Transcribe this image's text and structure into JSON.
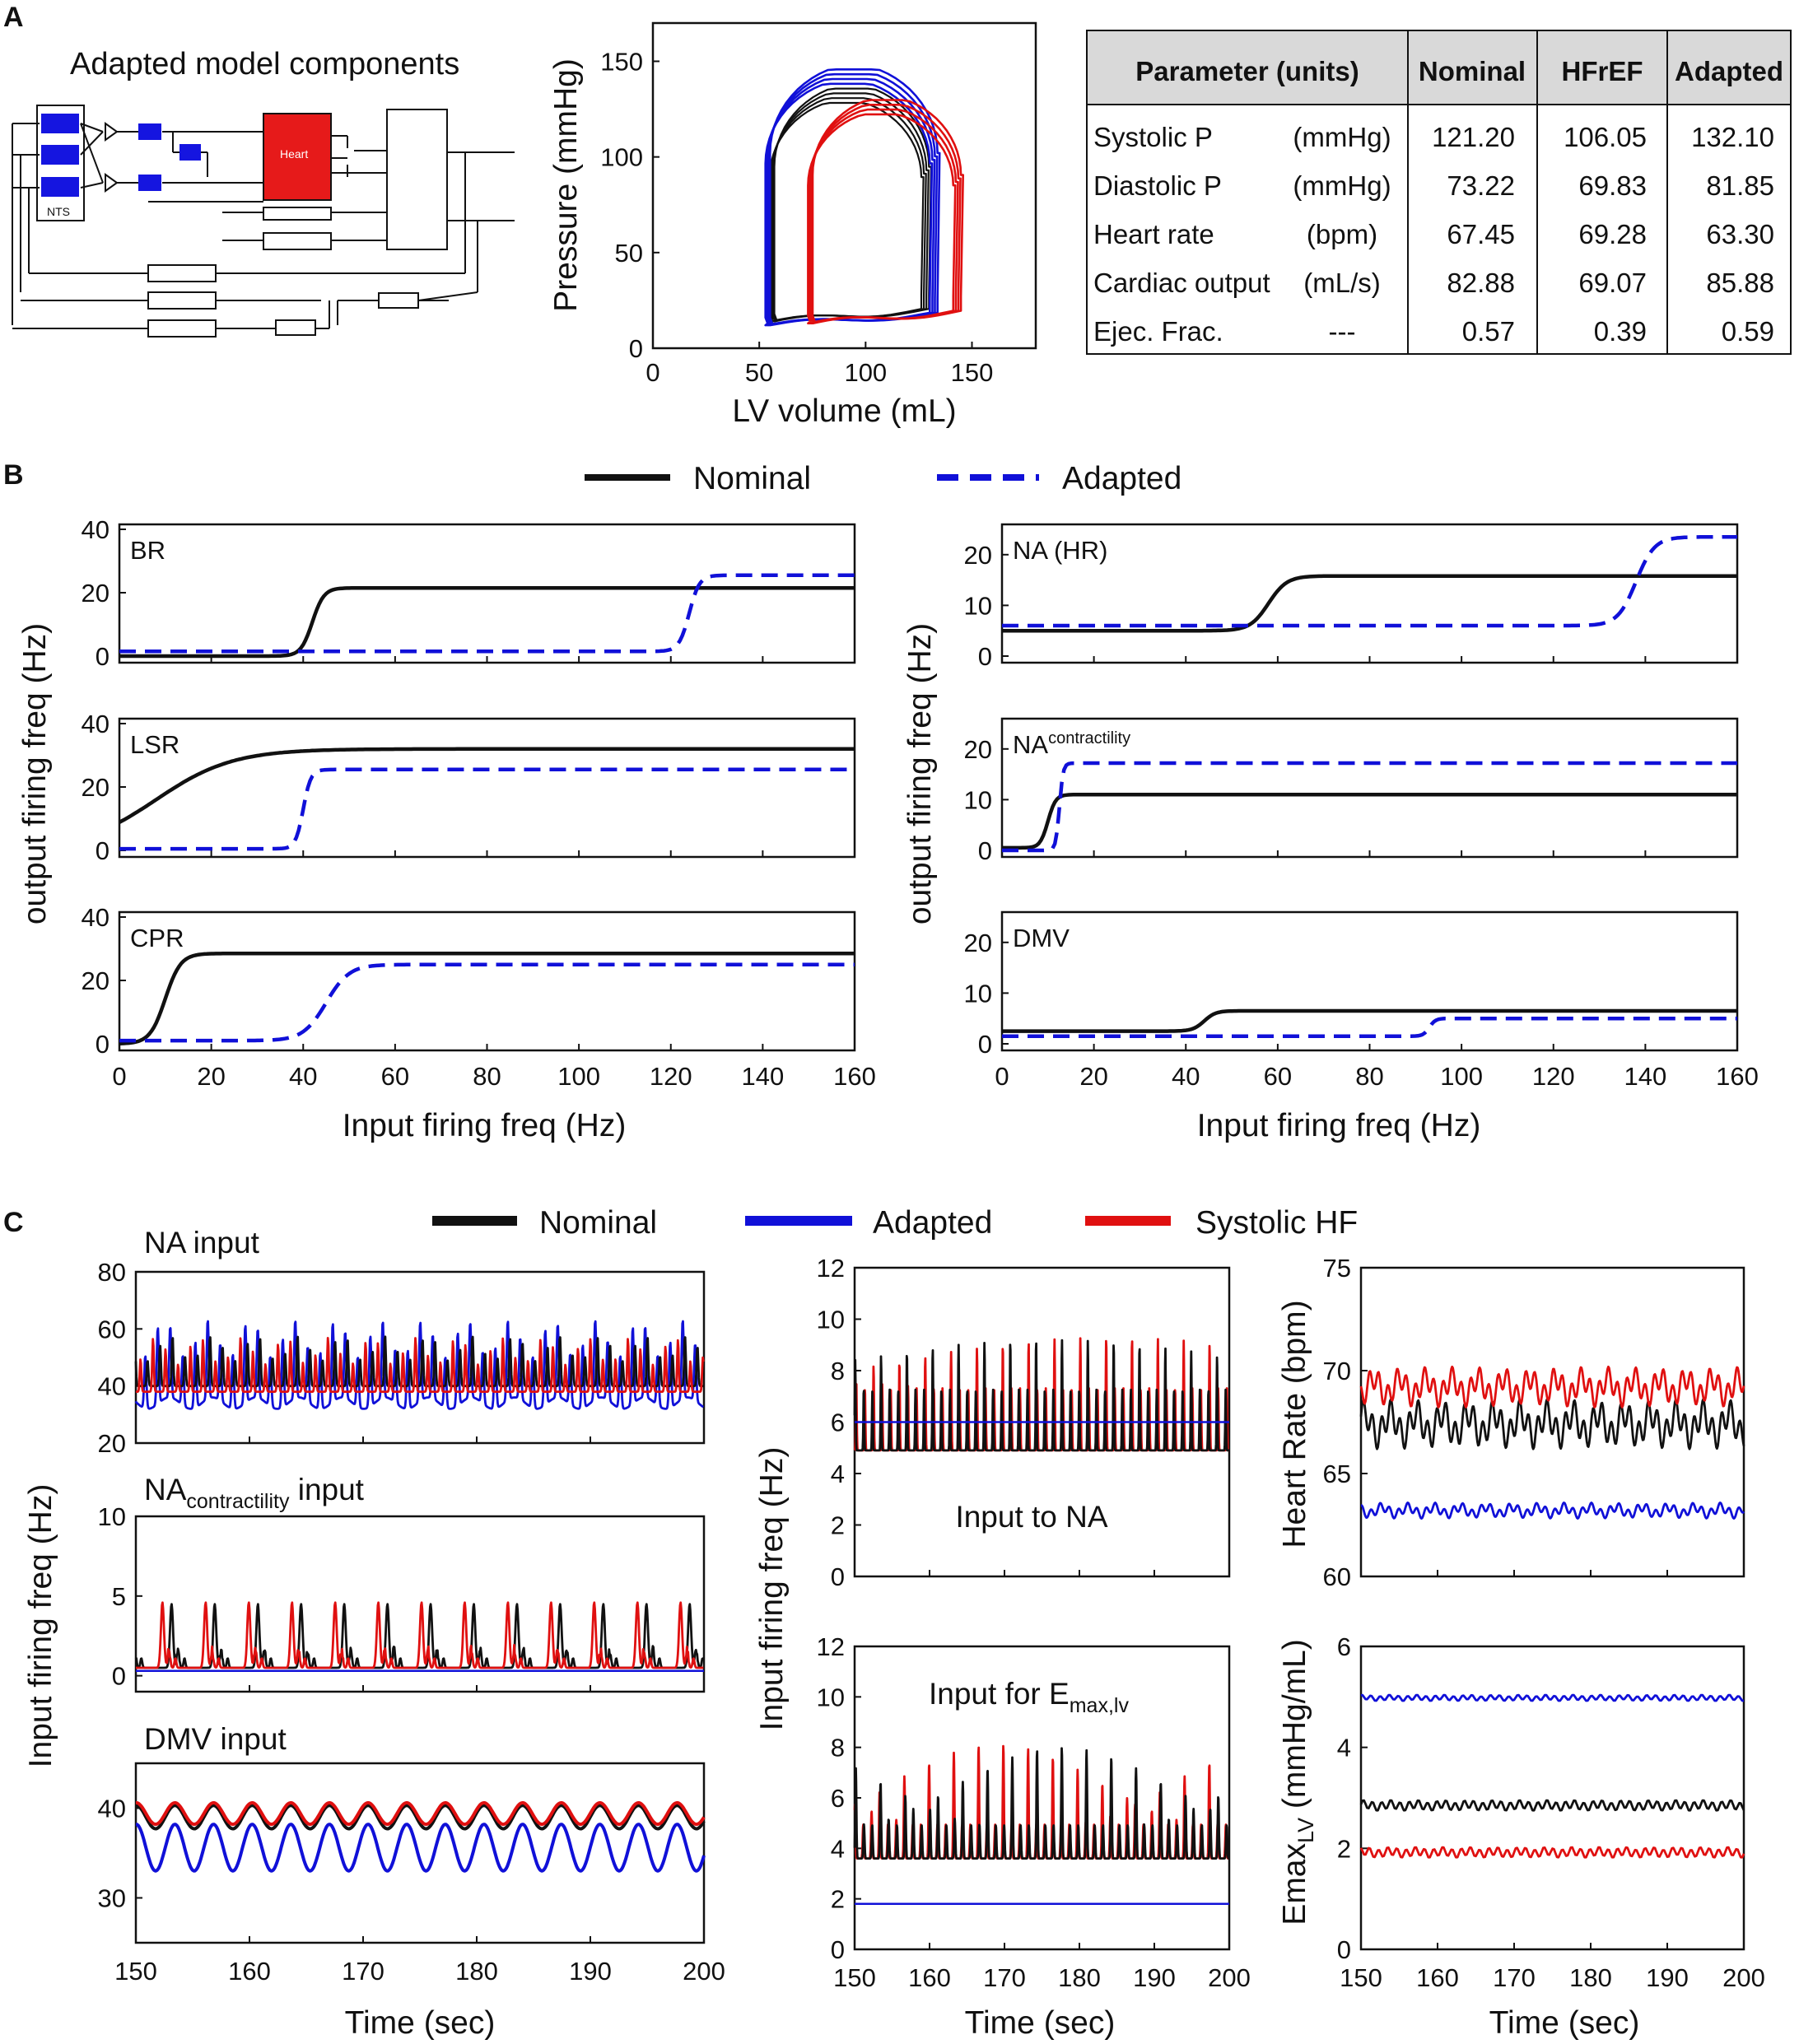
{
  "panels": {
    "a": "A",
    "b": "B",
    "c": "C"
  },
  "diagram": {
    "title": "Adapted model components",
    "heart_label": "Heart",
    "nts_label": "NTS",
    "colors": {
      "block": "#1515e0",
      "heart": "#e61a1a"
    }
  },
  "pv_loop": {
    "xlabel": "LV volume (mL)",
    "ylabel": "Pressure (mmHg)",
    "xticks": [
      "0",
      "50",
      "100",
      "150"
    ],
    "yticks": [
      "0",
      "50",
      "100",
      "150"
    ]
  },
  "table": {
    "headers": [
      "Parameter (units)",
      "Nominal",
      "HFrEF",
      "Adapted"
    ],
    "rows": [
      {
        "name": "Systolic P",
        "unit": "(mmHg)",
        "values": [
          "121.20",
          "106.05",
          "132.10"
        ]
      },
      {
        "name": "Diastolic P",
        "unit": "(mmHg)",
        "values": [
          "73.22",
          "69.83",
          "81.85"
        ]
      },
      {
        "name": "Heart rate",
        "unit": "(bpm)",
        "values": [
          "67.45",
          "69.28",
          "63.30"
        ]
      },
      {
        "name": "Cardiac output",
        "unit": "(mL/s)",
        "values": [
          "82.88",
          "69.07",
          "85.88"
        ]
      },
      {
        "name": "Ejec. Frac.",
        "unit": "---",
        "values": [
          "0.57",
          "0.39",
          "0.59"
        ]
      }
    ]
  },
  "legend_b": [
    "Nominal",
    "Adapted"
  ],
  "legend_c": [
    "Nominal",
    "Adapted",
    "Systolic HF"
  ],
  "colors": {
    "nominal": "#111111",
    "adapted": "#1010d8",
    "hf": "#e01010"
  },
  "b_axes": {
    "ylabel": "output firing freq (Hz)",
    "xlabel": "Input firing freq (Hz)",
    "xticks": [
      "0",
      "20",
      "40",
      "60",
      "80",
      "100",
      "120",
      "140",
      "160"
    ],
    "yticks_left": [
      "0",
      "20",
      "40"
    ],
    "yticks_right": [
      "0",
      "10",
      "20"
    ]
  },
  "b_titles": {
    "br": "BR",
    "lsr": "LSR",
    "cpr": "CPR",
    "nahr": "NA (HR)",
    "nac_main": "NA",
    "nac_sup": "contractility",
    "dmv": "DMV"
  },
  "c_axes": {
    "xticks": [
      "150",
      "160",
      "170",
      "180",
      "190",
      "200"
    ],
    "xlabel": "Time (sec)",
    "ylabel_left": "Input firing freq (Hz)",
    "ylabel_mid": "Input firing freq (Hz)",
    "na_yticks": [
      "20",
      "40",
      "60",
      "80"
    ],
    "nac_yticks": [
      "0",
      "5",
      "10"
    ],
    "dmv_yticks": [
      "30",
      "40"
    ],
    "mid_yticks": [
      "0",
      "2",
      "4",
      "6",
      "8",
      "10",
      "12"
    ],
    "hr_yticks": [
      "60",
      "65",
      "70",
      "75"
    ],
    "hr_ylabel": "Heart Rate (bpm)",
    "emax_yticks": [
      "0",
      "2",
      "4",
      "6"
    ],
    "emax_ylabel_main": "Emax",
    "emax_ylabel_sub": "LV",
    "emax_ylabel_unit": " (mmHg/mL)"
  },
  "c_titles": {
    "na": "NA input",
    "nac_main": "NA",
    "nac_sub": "contractility",
    "nac_tail": " input",
    "dmv": "DMV input",
    "input_na": "Input to NA",
    "input_emax_main": "Input for E",
    "input_emax_sub": "max,lv"
  },
  "chart_data": [
    {
      "type": "line",
      "name": "PV loops",
      "xlabel": "LV volume (mL)",
      "ylabel": "Pressure (mmHg)",
      "xlim": [
        0,
        180
      ],
      "ylim": [
        0,
        170
      ],
      "series": [
        {
          "name": "Nominal",
          "ved": 128,
          "ves": 56,
          "peak": 128,
          "dia": 16
        },
        {
          "name": "Adapted",
          "ved": 132,
          "ves": 54,
          "peak": 138,
          "dia": 14
        },
        {
          "name": "Systolic HF",
          "ved": 143,
          "ves": 74,
          "peak": 122,
          "dia": 15
        }
      ]
    },
    {
      "type": "line",
      "name": "BR",
      "xlim": [
        0,
        160
      ],
      "ylim": [
        0,
        40
      ],
      "series": [
        {
          "name": "Nominal",
          "min": 0,
          "max": 21.5,
          "mid": 42,
          "slope": 0.8
        },
        {
          "name": "Adapted",
          "min": 1.5,
          "max": 25.5,
          "mid": 124,
          "slope": 0.9
        }
      ]
    },
    {
      "type": "line",
      "name": "LSR",
      "xlim": [
        0,
        160
      ],
      "ylim": [
        0,
        40
      ],
      "series": [
        {
          "name": "Nominal",
          "min": 0,
          "max": 32,
          "mid": 8,
          "slope": 0.12
        },
        {
          "name": "Adapted",
          "min": 0.5,
          "max": 25.5,
          "mid": 40,
          "slope": 1.2
        }
      ]
    },
    {
      "type": "line",
      "name": "CPR",
      "xlim": [
        0,
        160
      ],
      "ylim": [
        0,
        40
      ],
      "series": [
        {
          "name": "Nominal",
          "min": 0,
          "max": 28.5,
          "mid": 10,
          "slope": 0.6
        },
        {
          "name": "Adapted",
          "min": 1,
          "max": 25,
          "mid": 45,
          "slope": 0.4
        }
      ]
    },
    {
      "type": "line",
      "name": "NA (HR)",
      "xlim": [
        0,
        160
      ],
      "ylim": [
        0,
        25
      ],
      "series": [
        {
          "name": "Nominal",
          "min": 5,
          "max": 15.8,
          "mid": 58,
          "slope": 0.5
        },
        {
          "name": "Adapted",
          "min": 6,
          "max": 23.5,
          "mid": 138,
          "slope": 0.5
        }
      ]
    },
    {
      "type": "line",
      "name": "NA contractility",
      "xlim": [
        0,
        160
      ],
      "ylim": [
        0,
        25
      ],
      "series": [
        {
          "name": "Nominal",
          "min": 0.5,
          "max": 11,
          "mid": 10,
          "slope": 1.2
        },
        {
          "name": "Adapted",
          "min": 0,
          "max": 17.2,
          "mid": 12.5,
          "slope": 2.5
        }
      ]
    },
    {
      "type": "line",
      "name": "DMV",
      "xlim": [
        0,
        160
      ],
      "ylim": [
        0,
        25
      ],
      "series": [
        {
          "name": "Nominal",
          "min": 2.5,
          "max": 6.5,
          "mid": 44,
          "slope": 0.8
        },
        {
          "name": "Adapted",
          "min": 1.5,
          "max": 5,
          "mid": 93,
          "slope": 1.5
        }
      ]
    },
    {
      "type": "line",
      "name": "NA input",
      "xlim": [
        150,
        200
      ],
      "ylim": [
        20,
        80
      ],
      "series": [
        {
          "name": "Nominal",
          "low": 40,
          "high": 58
        },
        {
          "name": "Adapted",
          "low": 34,
          "high": 62
        },
        {
          "name": "Systolic HF",
          "low": 38,
          "high": 57
        }
      ]
    },
    {
      "type": "line",
      "name": "NA contractility input",
      "xlim": [
        150,
        200
      ],
      "ylim": [
        -1,
        10
      ],
      "series": [
        {
          "name": "Nominal",
          "low": 0.5,
          "high": 4.5
        },
        {
          "name": "Adapted",
          "value": 0.3
        },
        {
          "name": "Systolic HF",
          "low": 0.5,
          "high": 4.6
        }
      ]
    },
    {
      "type": "line",
      "name": "DMV input",
      "xlim": [
        150,
        200
      ],
      "ylim": [
        25,
        45
      ],
      "series": [
        {
          "name": "Nominal",
          "center": 39,
          "amp": 1.3
        },
        {
          "name": "Adapted",
          "center": 35.6,
          "amp": 2.6
        },
        {
          "name": "Systolic HF",
          "center": 39.4,
          "amp": 1.2
        }
      ]
    },
    {
      "type": "line",
      "name": "Input to NA",
      "xlim": [
        150,
        200
      ],
      "ylim": [
        0,
        12
      ],
      "series": [
        {
          "name": "Nominal",
          "low": 4.9,
          "high": 9.2
        },
        {
          "name": "Adapted",
          "value": 6
        },
        {
          "name": "Systolic HF",
          "low": 4.9,
          "high": 9.3
        }
      ]
    },
    {
      "type": "line",
      "name": "Input for Emax,lv",
      "xlim": [
        150,
        200
      ],
      "ylim": [
        0,
        12
      ],
      "series": [
        {
          "name": "Nominal",
          "low": 3.6,
          "high": 8
        },
        {
          "name": "Adapted",
          "value": 1.8
        },
        {
          "name": "Systolic HF",
          "low": 3.6,
          "high": 8.1
        }
      ]
    },
    {
      "type": "line",
      "name": "Heart Rate",
      "xlim": [
        150,
        200
      ],
      "ylim": [
        60,
        75
      ],
      "series": [
        {
          "name": "Nominal",
          "center": 67.4,
          "amp": 1.1
        },
        {
          "name": "Adapted",
          "center": 63.2,
          "amp": 0.35
        },
        {
          "name": "Systolic HF",
          "center": 69.2,
          "amp": 0.9
        }
      ]
    },
    {
      "type": "line",
      "name": "Emax LV",
      "xlim": [
        150,
        200
      ],
      "ylim": [
        0,
        6
      ],
      "series": [
        {
          "name": "Nominal",
          "center": 2.85,
          "amp": 0.07
        },
        {
          "name": "Adapted",
          "center": 4.98,
          "amp": 0.04
        },
        {
          "name": "Systolic HF",
          "center": 1.92,
          "amp": 0.07
        }
      ]
    }
  ]
}
